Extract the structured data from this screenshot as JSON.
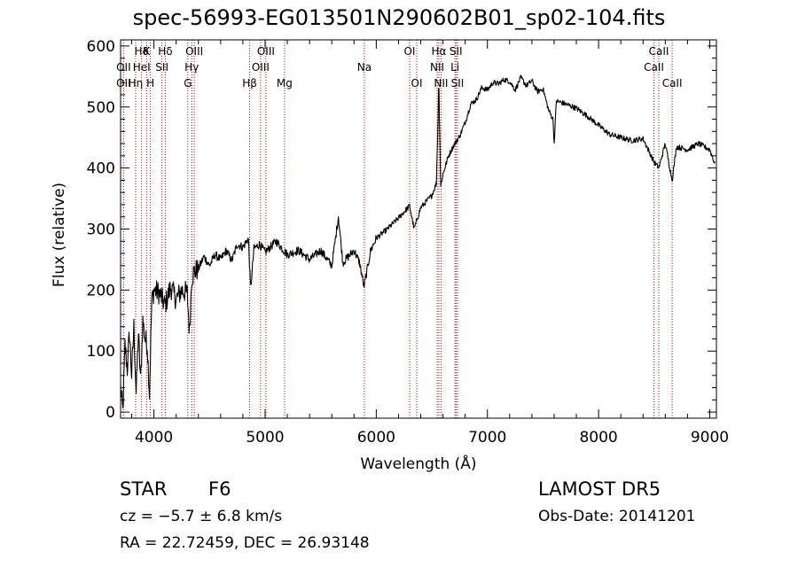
{
  "chart_data": {
    "type": "line",
    "title": "spec-56993-EG013501N290602B01_sp02-104.fits",
    "xlabel": "Wavelength (Å)",
    "ylabel": "Flux (relative)",
    "xlim": [
      3700,
      9060
    ],
    "ylim": [
      -10,
      610
    ],
    "xticks": [
      4000,
      5000,
      6000,
      7000,
      8000,
      9000
    ],
    "yticks": [
      0,
      100,
      200,
      300,
      400,
      500,
      600
    ],
    "grid": false,
    "series": [
      {
        "color": "#000000",
        "x": [
          3700,
          3720,
          3740,
          3760,
          3780,
          3800,
          3820,
          3840,
          3860,
          3880,
          3900,
          3920,
          3940,
          3960,
          3980,
          4000,
          4050,
          4100,
          4150,
          4200,
          4250,
          4300,
          4320,
          4340,
          4360,
          4400,
          4450,
          4500,
          4550,
          4600,
          4650,
          4700,
          4750,
          4800,
          4850,
          4870,
          4900,
          4950,
          5000,
          5100,
          5200,
          5300,
          5400,
          5500,
          5600,
          5660,
          5700,
          5800,
          5850,
          5890,
          5950,
          6000,
          6100,
          6200,
          6300,
          6340,
          6400,
          6450,
          6500,
          6540,
          6563,
          6580,
          6600,
          6650,
          6700,
          6750,
          6800,
          6850,
          6900,
          6950,
          7000,
          7050,
          7100,
          7150,
          7200,
          7250,
          7300,
          7350,
          7400,
          7450,
          7500,
          7550,
          7590,
          7600,
          7620,
          7700,
          7800,
          7900,
          8000,
          8100,
          8200,
          8300,
          8400,
          8498,
          8542,
          8600,
          8662,
          8700,
          8800,
          8900,
          9000,
          9050
        ],
        "values": [
          40,
          0,
          110,
          70,
          130,
          60,
          140,
          30,
          130,
          50,
          150,
          120,
          110,
          30,
          180,
          200,
          195,
          175,
          205,
          185,
          200,
          195,
          130,
          220,
          230,
          235,
          255,
          240,
          258,
          250,
          265,
          248,
          275,
          270,
          285,
          200,
          268,
          275,
          262,
          280,
          258,
          265,
          250,
          265,
          240,
          320,
          245,
          265,
          245,
          205,
          265,
          285,
          300,
          318,
          338,
          300,
          335,
          345,
          355,
          375,
          530,
          370,
          390,
          420,
          438,
          452,
          475,
          505,
          512,
          532,
          528,
          540,
          538,
          545,
          542,
          528,
          548,
          535,
          543,
          525,
          530,
          495,
          480,
          440,
          510,
          505,
          498,
          485,
          470,
          455,
          450,
          445,
          448,
          410,
          400,
          440,
          380,
          435,
          430,
          440,
          430,
          405
        ],
        "peak_values": {
          "6563": 530,
          "5660": 320
        }
      }
    ],
    "line_labels": [
      {
        "text": "Hδ",
        "wl": 3889,
        "row": 0
      },
      {
        "text": "K",
        "wl": 3934,
        "row": 0
      },
      {
        "text": "Hδ",
        "wl": 4102,
        "row": 0
      },
      {
        "text": "OIII",
        "wl": 4363,
        "row": 0
      },
      {
        "text": "OIII",
        "wl": 5007,
        "row": 0
      },
      {
        "text": "OI",
        "wl": 6300,
        "row": 0
      },
      {
        "text": "Hα",
        "wl": 6563,
        "row": 0
      },
      {
        "text": "SII",
        "wl": 6717,
        "row": 0
      },
      {
        "text": "CaII",
        "wl": 8542,
        "row": 0
      },
      {
        "text": "OII",
        "wl": 3727,
        "row": 1
      },
      {
        "text": "HeI",
        "wl": 3889,
        "row": 1
      },
      {
        "text": "SII",
        "wl": 4072,
        "row": 1
      },
      {
        "text": "Hγ",
        "wl": 4340,
        "row": 1
      },
      {
        "text": "OIII",
        "wl": 4959,
        "row": 1
      },
      {
        "text": "Na",
        "wl": 5893,
        "row": 1
      },
      {
        "text": "NII",
        "wl": 6548,
        "row": 1
      },
      {
        "text": "Li",
        "wl": 6708,
        "row": 1
      },
      {
        "text": "CaII",
        "wl": 8498,
        "row": 1
      },
      {
        "text": "OII",
        "wl": 3727,
        "row": 2
      },
      {
        "text": "Hη",
        "wl": 3835,
        "row": 2
      },
      {
        "text": "H",
        "wl": 3968,
        "row": 2
      },
      {
        "text": "G",
        "wl": 4305,
        "row": 2
      },
      {
        "text": "Hβ",
        "wl": 4861,
        "row": 2
      },
      {
        "text": "Mg",
        "wl": 5175,
        "row": 2
      },
      {
        "text": "OI",
        "wl": 6364,
        "row": 2
      },
      {
        "text": "NII",
        "wl": 6583,
        "row": 2
      },
      {
        "text": "SII",
        "wl": 6731,
        "row": 2
      },
      {
        "text": "CaII",
        "wl": 8662,
        "row": 2
      }
    ],
    "line_marker_wavelengths": [
      3727,
      3835,
      3889,
      3934,
      3968,
      4072,
      4102,
      4305,
      4340,
      4363,
      4861,
      4959,
      5007,
      5175,
      5893,
      6300,
      6364,
      6548,
      6563,
      6583,
      6708,
      6717,
      6731,
      8498,
      8542,
      8662
    ],
    "line_marker_color": "#cc0000"
  },
  "info": {
    "object_class": "STAR",
    "subclass": "F6",
    "survey": "LAMOST  DR5",
    "cz": "cz = −5.7 ± 6.8 km/s",
    "obs_date": "Obs-Date: 20141201",
    "coords": "RA =  22.72459, DEC =  26.93148"
  }
}
